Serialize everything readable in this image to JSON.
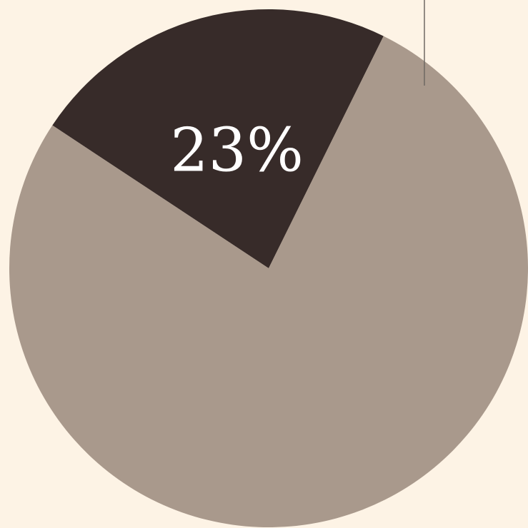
{
  "chart_data": {
    "type": "pie",
    "title": "",
    "slices": [
      {
        "label": "",
        "value": 23,
        "display": "23%",
        "color": "#372b29"
      },
      {
        "label": "",
        "value": 77,
        "display": "",
        "color": "#a9998c"
      }
    ],
    "legend": "none"
  },
  "colors": {
    "background": "#fdf3e5",
    "leader_line": "#6e6863"
  }
}
